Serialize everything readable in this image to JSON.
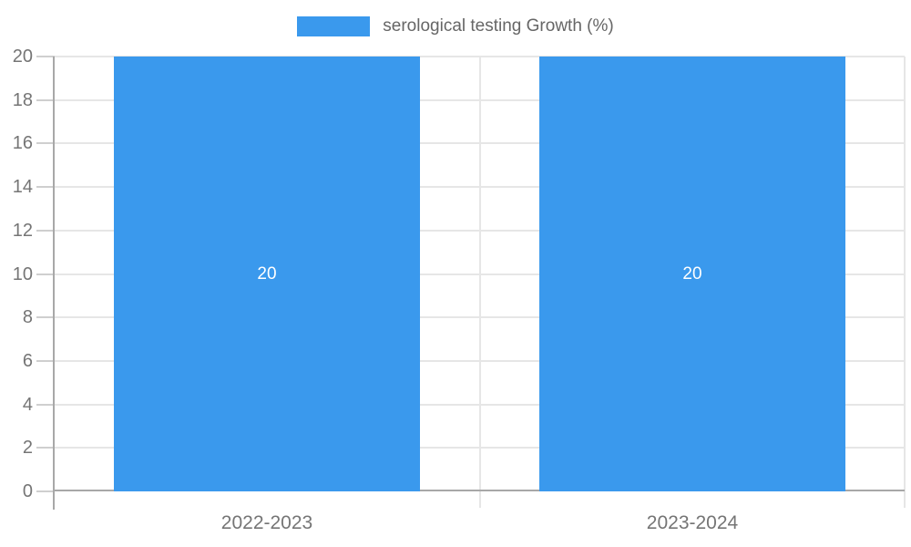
{
  "chart_data": {
    "type": "bar",
    "title": "",
    "legend_label": "serological testing Growth (%)",
    "legend_position": "top-center",
    "categories": [
      "2022-2023",
      "2023-2024"
    ],
    "series": [
      {
        "name": "serological testing Growth (%)",
        "values": [
          20,
          20
        ]
      }
    ],
    "value_labels": [
      "20",
      "20"
    ],
    "ylabel": "",
    "xlabel": "",
    "ylim": [
      0,
      20
    ],
    "ytick_step": 2,
    "yticks": [
      0,
      2,
      4,
      6,
      8,
      10,
      12,
      14,
      16,
      18,
      20
    ],
    "grid": true,
    "colors": {
      "bar": "#3a99ed",
      "gridline": "#e6e6e6",
      "axis": "#a8a8a8",
      "tick": "#cfcfcf",
      "tick_label": "#757575",
      "legend_text": "#666666",
      "value_label": "#ffffff",
      "background": "#ffffff"
    }
  }
}
